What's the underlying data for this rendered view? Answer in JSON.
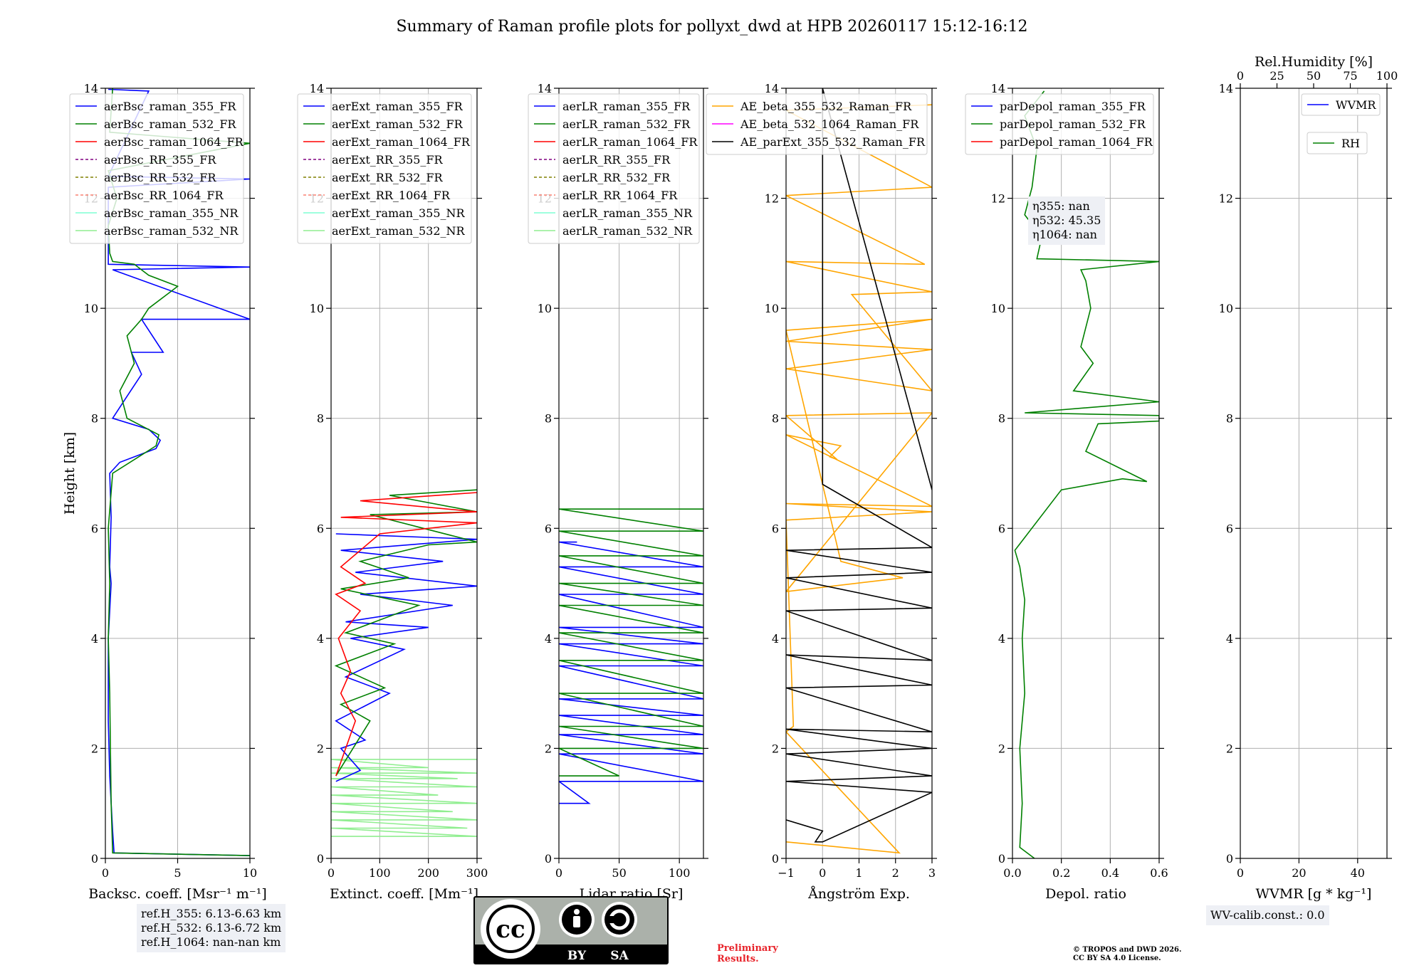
{
  "figure_title": "Summary of Raman profile plots for pollyxt_dwd at HPB 20260117 15:12-16:12",
  "colors": {
    "blue": "#0000ff",
    "green": "#008000",
    "red": "#ff0000",
    "purple": "#800080",
    "olive": "#808000",
    "salmon": "#fa8072",
    "aquamarine": "#7fffd4",
    "lightgreen": "#90ee90",
    "orange": "#ffa500",
    "magenta": "#ff00ff",
    "black": "#000000"
  },
  "chart_data": [
    {
      "type": "line",
      "id": "bsc",
      "xlabel": "Backsc. coeff. [Msr⁻¹ m⁻¹]",
      "ylabel": "Height [km]",
      "xlim": [
        0,
        10
      ],
      "ylim": [
        0,
        14
      ],
      "xticks": [
        0,
        5,
        10
      ],
      "yticks": [
        0,
        2,
        4,
        6,
        8,
        10,
        12,
        14
      ],
      "legend": [
        {
          "label": "aerBsc_raman_355_FR",
          "color": "blue",
          "dash": false
        },
        {
          "label": "aerBsc_raman_532_FR",
          "color": "green",
          "dash": false
        },
        {
          "label": "aerBsc_raman_1064_FR",
          "color": "red",
          "dash": false
        },
        {
          "label": "aerBsc_RR_355_FR",
          "color": "purple",
          "dash": true
        },
        {
          "label": "aerBsc_RR_532_FR",
          "color": "olive",
          "dash": true
        },
        {
          "label": "aerBsc_RR_1064_FR",
          "color": "salmon",
          "dash": true
        },
        {
          "label": "aerBsc_raman_355_NR",
          "color": "aquamarine",
          "dash": false
        },
        {
          "label": "aerBsc_raman_532_NR",
          "color": "lightgreen",
          "dash": false
        }
      ],
      "series": [
        {
          "name": "aerBsc_raman_355_FR",
          "color": "blue",
          "x": [
            10,
            0.6,
            0.5,
            0.3,
            0.2,
            0.2,
            0.4,
            0.3,
            0.4,
            0.3,
            1,
            3.5,
            3.8,
            3.0,
            0.5,
            1.5,
            2.5,
            1.8,
            4.0,
            2.5,
            10,
            0.5,
            10,
            0.2,
            0.2,
            10,
            0.2,
            3.0,
            0.2
          ],
          "y": [
            0.05,
            0.1,
            0.5,
            1.5,
            2.5,
            4.0,
            5.0,
            5.3,
            6.2,
            7.0,
            7.2,
            7.45,
            7.6,
            7.8,
            8.0,
            8.4,
            8.8,
            9.2,
            9.2,
            9.8,
            9.8,
            10.7,
            10.75,
            10.8,
            12.2,
            12.35,
            12.4,
            13.95,
            13.98
          ]
        },
        {
          "name": "aerBsc_raman_532_FR",
          "color": "green",
          "x": [
            10,
            0.5,
            0.4,
            0.3,
            0.2,
            0.3,
            0.2,
            0.5,
            3.5,
            3.7,
            1.5,
            1.0,
            2.0,
            1.5,
            2.5,
            3.0,
            4.5,
            5.0,
            3.0,
            2.0,
            0.5,
            0.3,
            0.2,
            0.8,
            0.2,
            10,
            0.3,
            0.5
          ],
          "y": [
            0.05,
            0.1,
            1.0,
            3.0,
            4.0,
            5.0,
            6.0,
            7.0,
            7.5,
            7.7,
            8.0,
            8.5,
            9.0,
            9.5,
            9.8,
            10.0,
            10.3,
            10.4,
            10.6,
            10.8,
            10.85,
            11.0,
            11.5,
            12.0,
            12.5,
            13.0,
            13.2,
            14.0
          ]
        }
      ],
      "info_lines": [
        "ref.H_355: 6.13-6.63 km",
        "ref.H_532: 6.13-6.72 km",
        "ref.H_1064: nan-nan km"
      ]
    },
    {
      "type": "line",
      "id": "ext",
      "xlabel": "Extinct. coeff. [Mm⁻¹]",
      "xlim": [
        0,
        300
      ],
      "ylim": [
        0,
        14
      ],
      "xticks": [
        0,
        100,
        200,
        300
      ],
      "yticks": [
        0,
        2,
        4,
        6,
        8,
        10,
        12,
        14
      ],
      "legend": [
        {
          "label": "aerExt_raman_355_FR",
          "color": "blue",
          "dash": false
        },
        {
          "label": "aerExt_raman_532_FR",
          "color": "green",
          "dash": false
        },
        {
          "label": "aerExt_raman_1064_FR",
          "color": "red",
          "dash": false
        },
        {
          "label": "aerExt_RR_355_FR",
          "color": "purple",
          "dash": true
        },
        {
          "label": "aerExt_RR_532_FR",
          "color": "olive",
          "dash": true
        },
        {
          "label": "aerExt_RR_1064_FR",
          "color": "salmon",
          "dash": true
        },
        {
          "label": "aerExt_raman_355_NR",
          "color": "aquamarine",
          "dash": false
        },
        {
          "label": "aerExt_raman_532_NR",
          "color": "lightgreen",
          "dash": false
        }
      ],
      "series": [
        {
          "name": "aerExt_raman_532_NR",
          "color": "lightgreen",
          "x": [
            0,
            300,
            0,
            280,
            0,
            300,
            0,
            250,
            0,
            300,
            0,
            220,
            0,
            300,
            0,
            260,
            0,
            300,
            0,
            200,
            0,
            300
          ],
          "y": [
            0.4,
            0.4,
            0.55,
            0.55,
            0.7,
            0.7,
            0.85,
            0.85,
            1.0,
            1.0,
            1.15,
            1.15,
            1.3,
            1.3,
            1.45,
            1.45,
            1.55,
            1.55,
            1.65,
            1.65,
            1.8,
            1.8
          ]
        },
        {
          "name": "aerExt_raman_355_FR",
          "color": "blue",
          "x": [
            10,
            60,
            20,
            70,
            10,
            120,
            30,
            150,
            40,
            200,
            30,
            250,
            60,
            300,
            50,
            230,
            20,
            300,
            10
          ],
          "y": [
            1.4,
            1.6,
            2.0,
            2.15,
            2.5,
            3.0,
            3.3,
            3.8,
            4.0,
            4.2,
            4.3,
            4.6,
            4.8,
            4.95,
            5.2,
            5.4,
            5.6,
            5.8,
            5.9
          ]
        },
        {
          "name": "aerExt_raman_532_FR",
          "color": "green",
          "x": [
            10,
            80,
            20,
            110,
            10,
            130,
            30,
            180,
            20,
            160,
            60,
            200,
            300,
            80,
            300,
            120,
            300
          ],
          "y": [
            1.5,
            2.5,
            2.8,
            3.1,
            3.5,
            3.9,
            4.1,
            4.6,
            4.9,
            5.1,
            5.4,
            5.7,
            5.75,
            6.25,
            6.3,
            6.6,
            6.7
          ]
        },
        {
          "name": "aerExt_raman_1064_FR",
          "color": "red",
          "x": [
            10,
            50,
            20,
            40,
            15,
            60,
            10,
            70,
            20,
            100,
            300,
            20,
            300,
            60,
            300
          ],
          "y": [
            1.5,
            2.5,
            3.0,
            3.4,
            4.0,
            4.5,
            4.8,
            5.0,
            5.3,
            5.9,
            6.1,
            6.2,
            6.3,
            6.5,
            6.65
          ]
        }
      ]
    },
    {
      "type": "line",
      "id": "lr",
      "xlabel": "Lidar ratio [Sr]",
      "xlim": [
        0,
        120
      ],
      "ylim": [
        0,
        14
      ],
      "xticks": [
        0,
        50,
        100
      ],
      "yticks": [
        0,
        2,
        4,
        6,
        8,
        10,
        12,
        14
      ],
      "legend": [
        {
          "label": "aerLR_raman_355_FR",
          "color": "blue",
          "dash": false
        },
        {
          "label": "aerLR_raman_532_FR",
          "color": "green",
          "dash": false
        },
        {
          "label": "aerLR_raman_1064_FR",
          "color": "red",
          "dash": false
        },
        {
          "label": "aerLR_RR_355_FR",
          "color": "purple",
          "dash": true
        },
        {
          "label": "aerLR_RR_532_FR",
          "color": "olive",
          "dash": true
        },
        {
          "label": "aerLR_RR_1064_FR",
          "color": "salmon",
          "dash": true
        },
        {
          "label": "aerLR_raman_355_NR",
          "color": "aquamarine",
          "dash": false
        },
        {
          "label": "aerLR_raman_532_NR",
          "color": "lightgreen",
          "dash": false
        }
      ],
      "series": [
        {
          "name": "aerLR_raman_355_FR",
          "color": "blue",
          "x": [
            0,
            25,
            0,
            120,
            0,
            120,
            0,
            120,
            0,
            120,
            0,
            120,
            0,
            120,
            0,
            120,
            0,
            120,
            0,
            120,
            0,
            120,
            0,
            15
          ],
          "y": [
            1.0,
            1.0,
            1.4,
            1.4,
            1.9,
            1.9,
            2.25,
            2.25,
            2.6,
            2.6,
            2.9,
            2.9,
            3.5,
            3.5,
            3.9,
            3.9,
            4.2,
            4.2,
            4.8,
            4.8,
            5.3,
            5.3,
            5.75,
            5.75
          ]
        },
        {
          "name": "aerLR_raman_532_FR",
          "color": "green",
          "x": [
            0,
            50,
            0,
            120,
            0,
            120,
            0,
            120,
            0,
            120,
            0,
            120,
            0,
            120,
            0,
            120,
            0,
            120,
            0,
            120,
            0,
            120
          ],
          "y": [
            1.5,
            1.5,
            2.0,
            2.0,
            2.4,
            2.4,
            3.0,
            3.0,
            3.6,
            3.6,
            4.1,
            4.1,
            4.6,
            4.6,
            5.0,
            5.0,
            5.5,
            5.5,
            5.95,
            5.95,
            6.35,
            6.35
          ]
        }
      ]
    },
    {
      "type": "line",
      "id": "ang",
      "xlabel": "Ångström Exp.",
      "xlim": [
        -1,
        3
      ],
      "ylim": [
        0,
        14
      ],
      "xticks": [
        -1,
        0,
        1,
        2,
        3
      ],
      "yticks": [
        0,
        2,
        4,
        6,
        8,
        10,
        12,
        14
      ],
      "legend": [
        {
          "label": "AE_beta_355_532_Raman_FR",
          "color": "orange",
          "dash": false
        },
        {
          "label": "AE_beta_532_1064_Raman_FR",
          "color": "magenta",
          "dash": false
        },
        {
          "label": "AE_parExt_355_532_Raman_FR",
          "color": "black",
          "dash": false
        }
      ],
      "series": [
        {
          "name": "AE_beta_355_532_Raman_FR",
          "color": "orange",
          "x": [
            -1,
            2.1,
            -1,
            -0.8,
            -1,
            3,
            -1,
            3,
            -1,
            0.5,
            0.2,
            0.4,
            -1,
            3,
            -1,
            2.2,
            0.5,
            -1,
            3,
            -1,
            3,
            -1,
            3,
            0.8,
            3,
            -1,
            2.8,
            -1,
            3,
            -1,
            3
          ],
          "y": [
            0.3,
            0.1,
            2.3,
            2.4,
            6.15,
            6.3,
            6.45,
            6.4,
            7.7,
            7.5,
            7.3,
            7.25,
            8.05,
            8.1,
            4.85,
            5.1,
            5.4,
            9.6,
            9.8,
            9.4,
            9.25,
            8.9,
            8.5,
            10.25,
            10.3,
            10.85,
            10.8,
            12.05,
            12.2,
            13.6,
            13.7
          ]
        },
        {
          "name": "AE_parExt_355_532_Raman_FR",
          "color": "black",
          "x": [
            -1,
            0,
            -0.2,
            0,
            3,
            -1,
            3,
            -1,
            3,
            -1,
            3,
            -1,
            3,
            -1,
            3,
            -1,
            3,
            -1,
            3,
            -1,
            3,
            0,
            0,
            3
          ],
          "y": [
            0.7,
            0.5,
            0.3,
            0.3,
            1.2,
            1.4,
            1.5,
            1.9,
            2.0,
            2.35,
            2.3,
            3.1,
            3.15,
            3.7,
            3.6,
            4.5,
            4.55,
            5.1,
            5.2,
            5.6,
            5.65,
            6.8,
            14.0,
            6.7
          ]
        }
      ]
    },
    {
      "type": "line",
      "id": "depol",
      "xlabel": "Depol. ratio",
      "xlim": [
        0,
        0.6
      ],
      "ylim": [
        0,
        14
      ],
      "xticks": [
        "0.0",
        "0.2",
        "0.4",
        "0.6"
      ],
      "yticks": [
        0,
        2,
        4,
        6,
        8,
        10,
        12,
        14
      ],
      "legend": [
        {
          "label": "parDepol_raman_355_FR",
          "color": "blue",
          "dash": false
        },
        {
          "label": "parDepol_raman_532_FR",
          "color": "green",
          "dash": false
        },
        {
          "label": "parDepol_raman_1064_FR",
          "color": "red",
          "dash": false
        }
      ],
      "series": [
        {
          "name": "parDepol_raman_532_FR",
          "color": "green",
          "x": [
            0.09,
            0.03,
            0.04,
            0.03,
            0.05,
            0.04,
            0.05,
            0.03,
            0.01,
            0.2,
            0.45,
            0.55,
            0.3,
            0.35,
            0.6,
            0.6,
            0.05,
            0.6,
            0.25,
            0.33,
            0.28,
            0.32,
            0.3,
            0.28,
            0.6,
            0.1,
            0.12,
            0.05,
            0.08,
            0.1,
            0.05,
            0.13
          ],
          "y": [
            0.0,
            0.2,
            1.0,
            2.0,
            3.0,
            4.0,
            4.7,
            5.3,
            5.6,
            6.7,
            6.9,
            6.85,
            7.4,
            7.9,
            7.95,
            8.05,
            8.1,
            8.3,
            8.5,
            9.0,
            9.3,
            10.0,
            10.5,
            10.7,
            10.85,
            10.9,
            11.3,
            11.7,
            12.2,
            12.9,
            13.5,
            13.95
          ]
        }
      ],
      "eta_box": [
        "η355: nan",
        "η532: 45.35",
        "η1064: nan"
      ]
    },
    {
      "type": "line",
      "id": "wv",
      "xlabel": "WVMR [g * kg⁻¹]",
      "xlim": [
        0,
        50
      ],
      "ylim": [
        0,
        14
      ],
      "xticks": [
        0,
        20,
        40
      ],
      "yticks": [
        0,
        2,
        4,
        6,
        8,
        10,
        12,
        14
      ],
      "top_xlabel": "Rel.Humidity [%]",
      "top_xlim": [
        0,
        100
      ],
      "top_xticks": [
        0,
        25,
        50,
        75,
        100
      ],
      "legend": [
        {
          "label": "WVMR",
          "color": "blue",
          "dash": false
        },
        {
          "label": "RH",
          "color": "green",
          "dash": false
        }
      ],
      "series": [],
      "info_lines": [
        "WV-calib.const.: 0.0"
      ]
    }
  ],
  "footer": {
    "preliminary_1": "Preliminary",
    "preliminary_2": "Results.",
    "copyright_1": "© TROPOS and DWD 2026.",
    "copyright_2": "CC BY SA 4.0 License.",
    "cc_by": "BY",
    "cc_sa": "SA",
    "cc_mark": "cc"
  }
}
